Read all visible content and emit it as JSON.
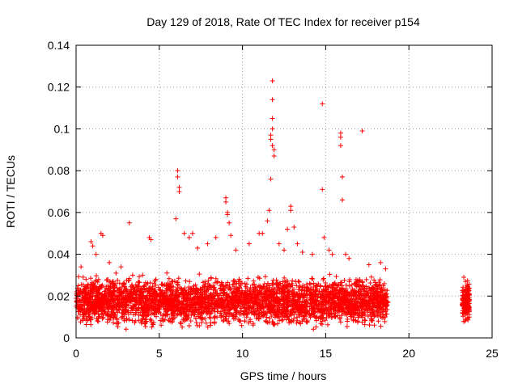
{
  "chart_data": {
    "type": "scatter",
    "title": "Day 129 of 2018, Rate Of TEC Index for receiver p154",
    "xlabel": "GPS time / hours",
    "ylabel": "ROTI / TECUs",
    "xlim": [
      0,
      25
    ],
    "ylim": [
      0,
      0.14
    ],
    "x_ticks": [
      0,
      5,
      10,
      15,
      20,
      25
    ],
    "y_ticks": [
      0,
      0.02,
      0.04,
      0.06,
      0.08,
      0.1,
      0.12,
      0.14
    ],
    "x_tick_labels": [
      "0",
      "5",
      "10",
      "15",
      "20",
      "25"
    ],
    "y_tick_labels": [
      "0",
      "0.02",
      "0.04",
      "0.06",
      "0.08",
      "0.1",
      "0.12",
      "0.14"
    ],
    "grid": true,
    "marker": "plus",
    "color": "#ff0000",
    "series": [
      {
        "points": [
          [
            0.3,
            0.034
          ],
          [
            0.6,
            0.028
          ],
          [
            0.9,
            0.046
          ],
          [
            1.0,
            0.044
          ],
          [
            1.2,
            0.04
          ],
          [
            1.5,
            0.05
          ],
          [
            1.6,
            0.049
          ],
          [
            2.0,
            0.036
          ],
          [
            2.4,
            0.031
          ],
          [
            2.7,
            0.034
          ],
          [
            3.2,
            0.055
          ],
          [
            3.4,
            0.03
          ],
          [
            4.0,
            0.03
          ],
          [
            4.4,
            0.048
          ],
          [
            4.5,
            0.047
          ],
          [
            4.8,
            0.028
          ],
          [
            6.0,
            0.057
          ],
          [
            6.1,
            0.077
          ],
          [
            6.1,
            0.08
          ],
          [
            6.2,
            0.072
          ],
          [
            6.2,
            0.07
          ],
          [
            6.5,
            0.05
          ],
          [
            6.8,
            0.048
          ],
          [
            7.0,
            0.05
          ],
          [
            7.3,
            0.043
          ],
          [
            7.9,
            0.045
          ],
          [
            8.4,
            0.048
          ],
          [
            9.0,
            0.067
          ],
          [
            9.0,
            0.065
          ],
          [
            9.1,
            0.06
          ],
          [
            9.1,
            0.059
          ],
          [
            9.2,
            0.055
          ],
          [
            9.3,
            0.049
          ],
          [
            9.6,
            0.042
          ],
          [
            10.4,
            0.045
          ],
          [
            11.0,
            0.05
          ],
          [
            11.2,
            0.05
          ],
          [
            11.5,
            0.056
          ],
          [
            11.6,
            0.061
          ],
          [
            11.7,
            0.076
          ],
          [
            11.7,
            0.097
          ],
          [
            11.7,
            0.095
          ],
          [
            11.8,
            0.092
          ],
          [
            11.8,
            0.1
          ],
          [
            11.8,
            0.105
          ],
          [
            11.8,
            0.114
          ],
          [
            11.8,
            0.123
          ],
          [
            11.9,
            0.087
          ],
          [
            11.9,
            0.09
          ],
          [
            12.2,
            0.045
          ],
          [
            12.5,
            0.042
          ],
          [
            12.7,
            0.052
          ],
          [
            12.9,
            0.063
          ],
          [
            12.9,
            0.061
          ],
          [
            13.1,
            0.053
          ],
          [
            13.3,
            0.045
          ],
          [
            13.6,
            0.041
          ],
          [
            14.2,
            0.04
          ],
          [
            14.8,
            0.112
          ],
          [
            14.8,
            0.071
          ],
          [
            14.9,
            0.048
          ],
          [
            15.2,
            0.042
          ],
          [
            15.4,
            0.04
          ],
          [
            15.9,
            0.098
          ],
          [
            15.9,
            0.096
          ],
          [
            15.9,
            0.092
          ],
          [
            16.0,
            0.077
          ],
          [
            16.0,
            0.066
          ],
          [
            16.2,
            0.04
          ],
          [
            16.4,
            0.038
          ],
          [
            17.2,
            0.099
          ],
          [
            17.6,
            0.035
          ],
          [
            18.3,
            0.036
          ],
          [
            18.6,
            0.033
          ],
          [
            23.3,
            0.029
          ],
          [
            23.4,
            0.027
          ],
          [
            23.5,
            0.025
          ]
        ]
      }
    ],
    "bands": [
      {
        "x0": 0.0,
        "x1": 18.75,
        "ymin": 0.003,
        "ymax": 0.028,
        "density": 3500,
        "seed": 129
      },
      {
        "x0": 23.2,
        "x1": 23.65,
        "ymin": 0.004,
        "ymax": 0.026,
        "density": 160,
        "seed": 154
      }
    ]
  }
}
